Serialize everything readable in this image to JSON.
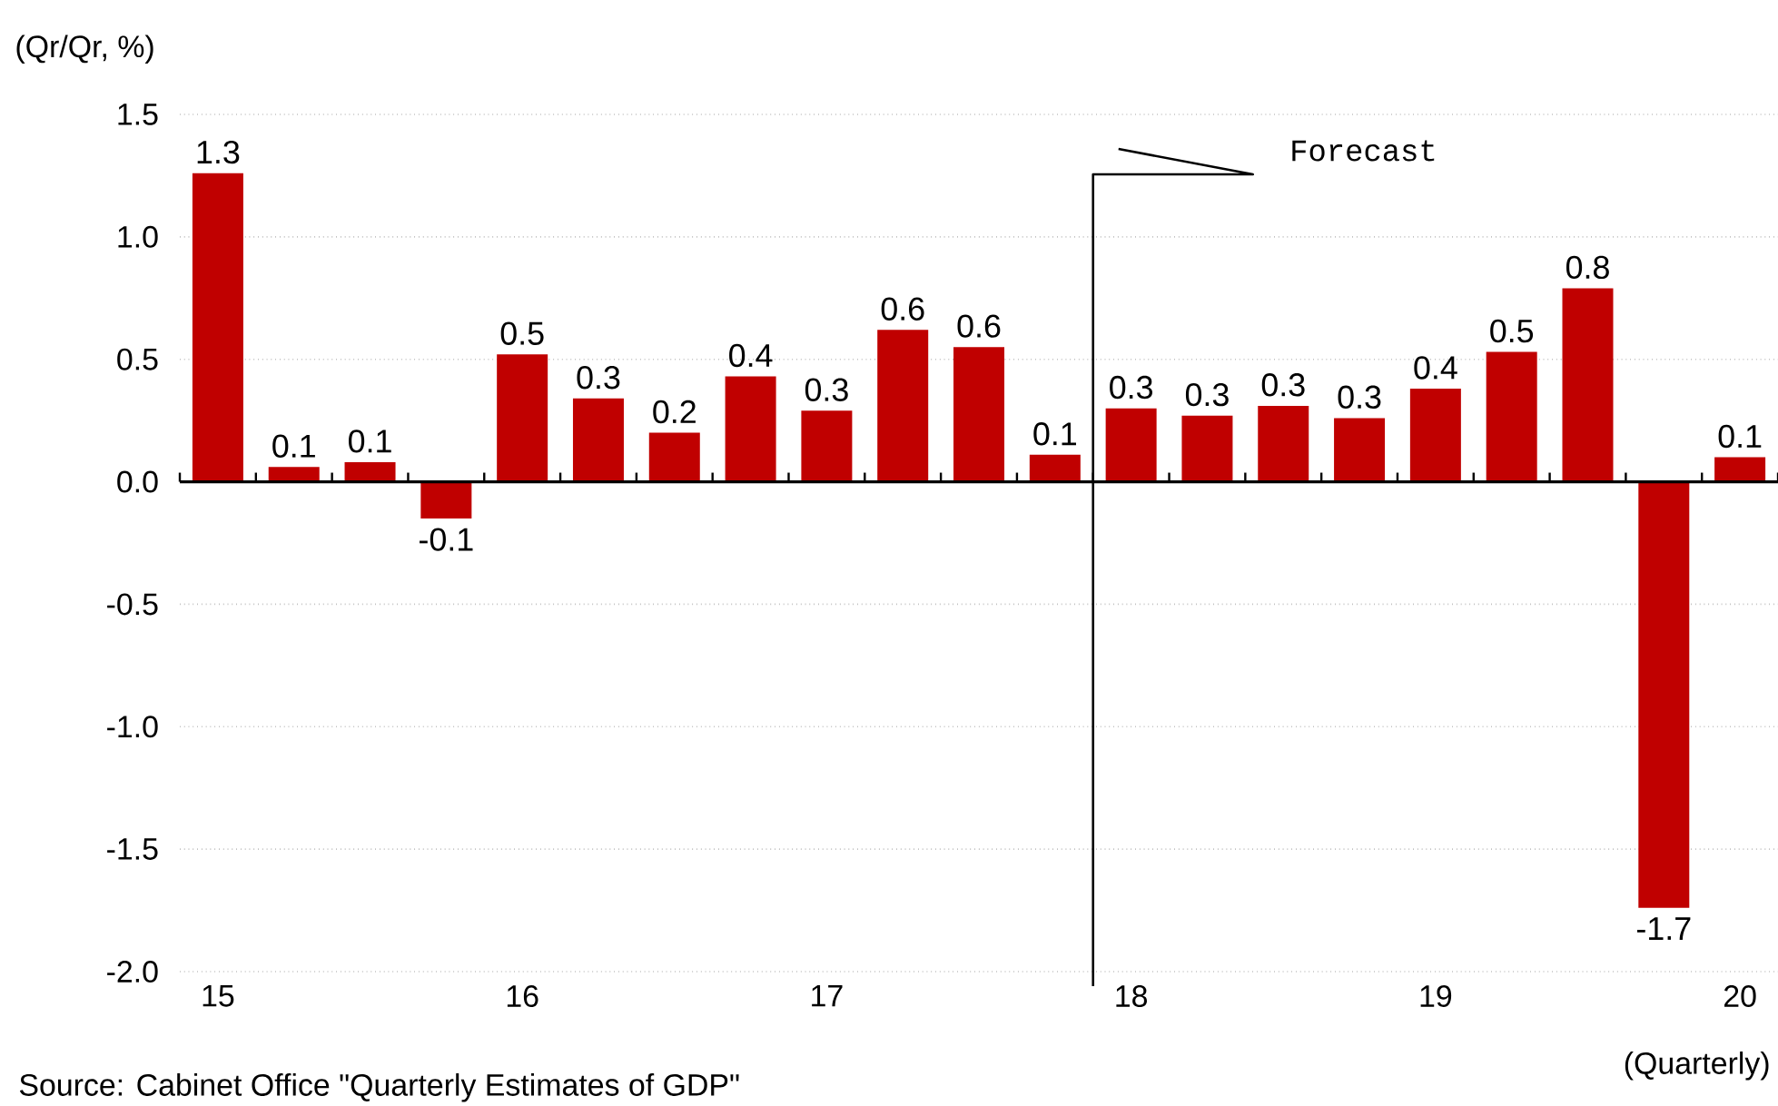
{
  "chart_data": {
    "type": "bar",
    "ylabel": "(Qr/Qr, %)",
    "xlabel": "(Quarterly)",
    "categories": [
      "15",
      null,
      null,
      null,
      "16",
      null,
      null,
      null,
      "17",
      null,
      null,
      null,
      "18",
      null,
      null,
      null,
      "19",
      null,
      null,
      null,
      "20"
    ],
    "values": [
      1.26,
      0.06,
      0.08,
      -0.15,
      0.52,
      0.34,
      0.2,
      0.43,
      0.29,
      0.62,
      0.55,
      0.11,
      0.3,
      0.27,
      0.31,
      0.26,
      0.38,
      0.53,
      0.79,
      -1.74,
      0.1
    ],
    "value_labels": [
      "1.3",
      "0.1",
      "0.1",
      "-0.1",
      "0.5",
      "0.3",
      "0.2",
      "0.4",
      "0.3",
      "0.6",
      "0.6",
      "0.1",
      "0.3",
      "0.3",
      "0.3",
      "0.3",
      "0.4",
      "0.5",
      "0.8",
      "-1.7",
      "0.1"
    ],
    "color": "#c00000",
    "ylim": [
      -2.0,
      1.5
    ],
    "yticks": [
      {
        "value": -2.0,
        "label": "-2.0"
      },
      -1.5,
      {
        "value": -1.0,
        "label": "-1.0"
      },
      -0.5,
      {
        "value": 0.0,
        "label": "0.0"
      },
      0.5,
      {
        "value": 1.0,
        "label": "1.0"
      },
      1.5
    ],
    "grid": "y",
    "ref_lines": [
      {
        "axis": "x",
        "value": "18",
        "label": "Forecast"
      }
    ],
    "annotations": [
      "Source: Cabinet Office \"Quarterly Estimates of GDP\""
    ]
  }
}
